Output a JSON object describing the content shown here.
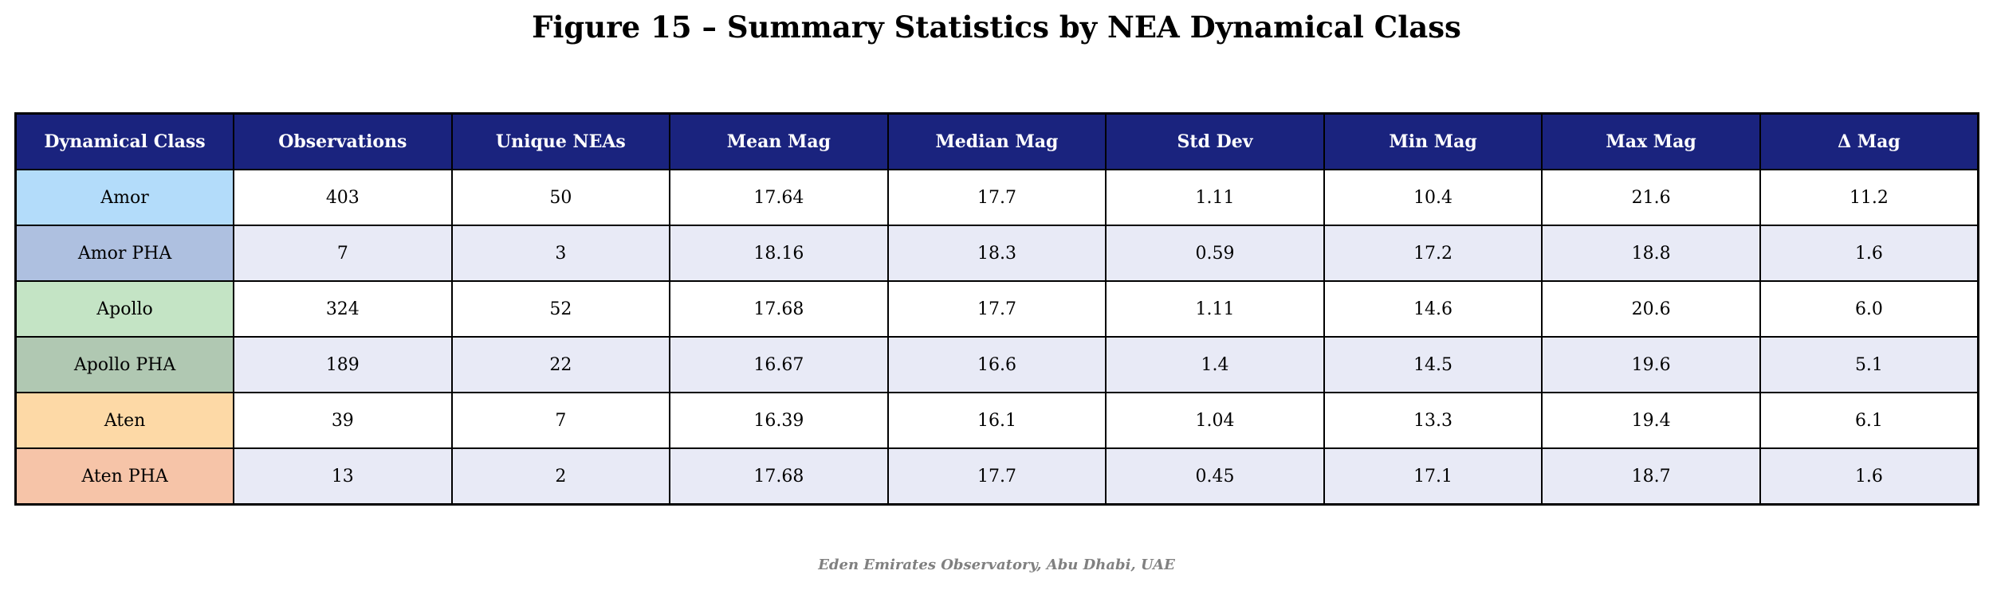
{
  "title": "Figure 15 – Summary Statistics by NEA Dynamical Class",
  "footer": "Eden Emirates Observatory, Abu Dhabi, UAE",
  "colors": {
    "header_bg": "#1a237e",
    "header_text": "#ffffff",
    "row_alt_bg": "#e8eaf6",
    "row_bg": "#ffffff"
  },
  "chart_data": {
    "type": "table",
    "columns": [
      "Dynamical Class",
      "Observations",
      "Unique NEAs",
      "Mean Mag",
      "Median Mag",
      "Std Dev",
      "Min Mag",
      "Max Mag",
      "Δ Mag"
    ],
    "rows": [
      {
        "class": "Amor",
        "class_color": "#b3dcfa",
        "values": [
          "403",
          "50",
          "17.64",
          "17.7",
          "1.11",
          "10.4",
          "21.6",
          "11.2"
        ]
      },
      {
        "class": "Amor PHA",
        "class_color": "#aec0e0",
        "values": [
          "7",
          "3",
          "18.16",
          "18.3",
          "0.59",
          "17.2",
          "18.8",
          "1.6"
        ]
      },
      {
        "class": "Apollo",
        "class_color": "#c4e4c5",
        "values": [
          "324",
          "52",
          "17.68",
          "17.7",
          "1.11",
          "14.6",
          "20.6",
          "6.0"
        ]
      },
      {
        "class": "Apollo PHA",
        "class_color": "#b0c8b2",
        "values": [
          "189",
          "22",
          "16.67",
          "16.6",
          "1.4",
          "14.5",
          "19.6",
          "5.1"
        ]
      },
      {
        "class": "Aten",
        "class_color": "#fdd9a6",
        "values": [
          "39",
          "7",
          "16.39",
          "16.1",
          "1.04",
          "13.3",
          "19.4",
          "6.1"
        ]
      },
      {
        "class": "Aten PHA",
        "class_color": "#f6c4a8",
        "values": [
          "13",
          "2",
          "17.68",
          "17.7",
          "0.45",
          "17.1",
          "18.7",
          "1.6"
        ]
      }
    ]
  }
}
